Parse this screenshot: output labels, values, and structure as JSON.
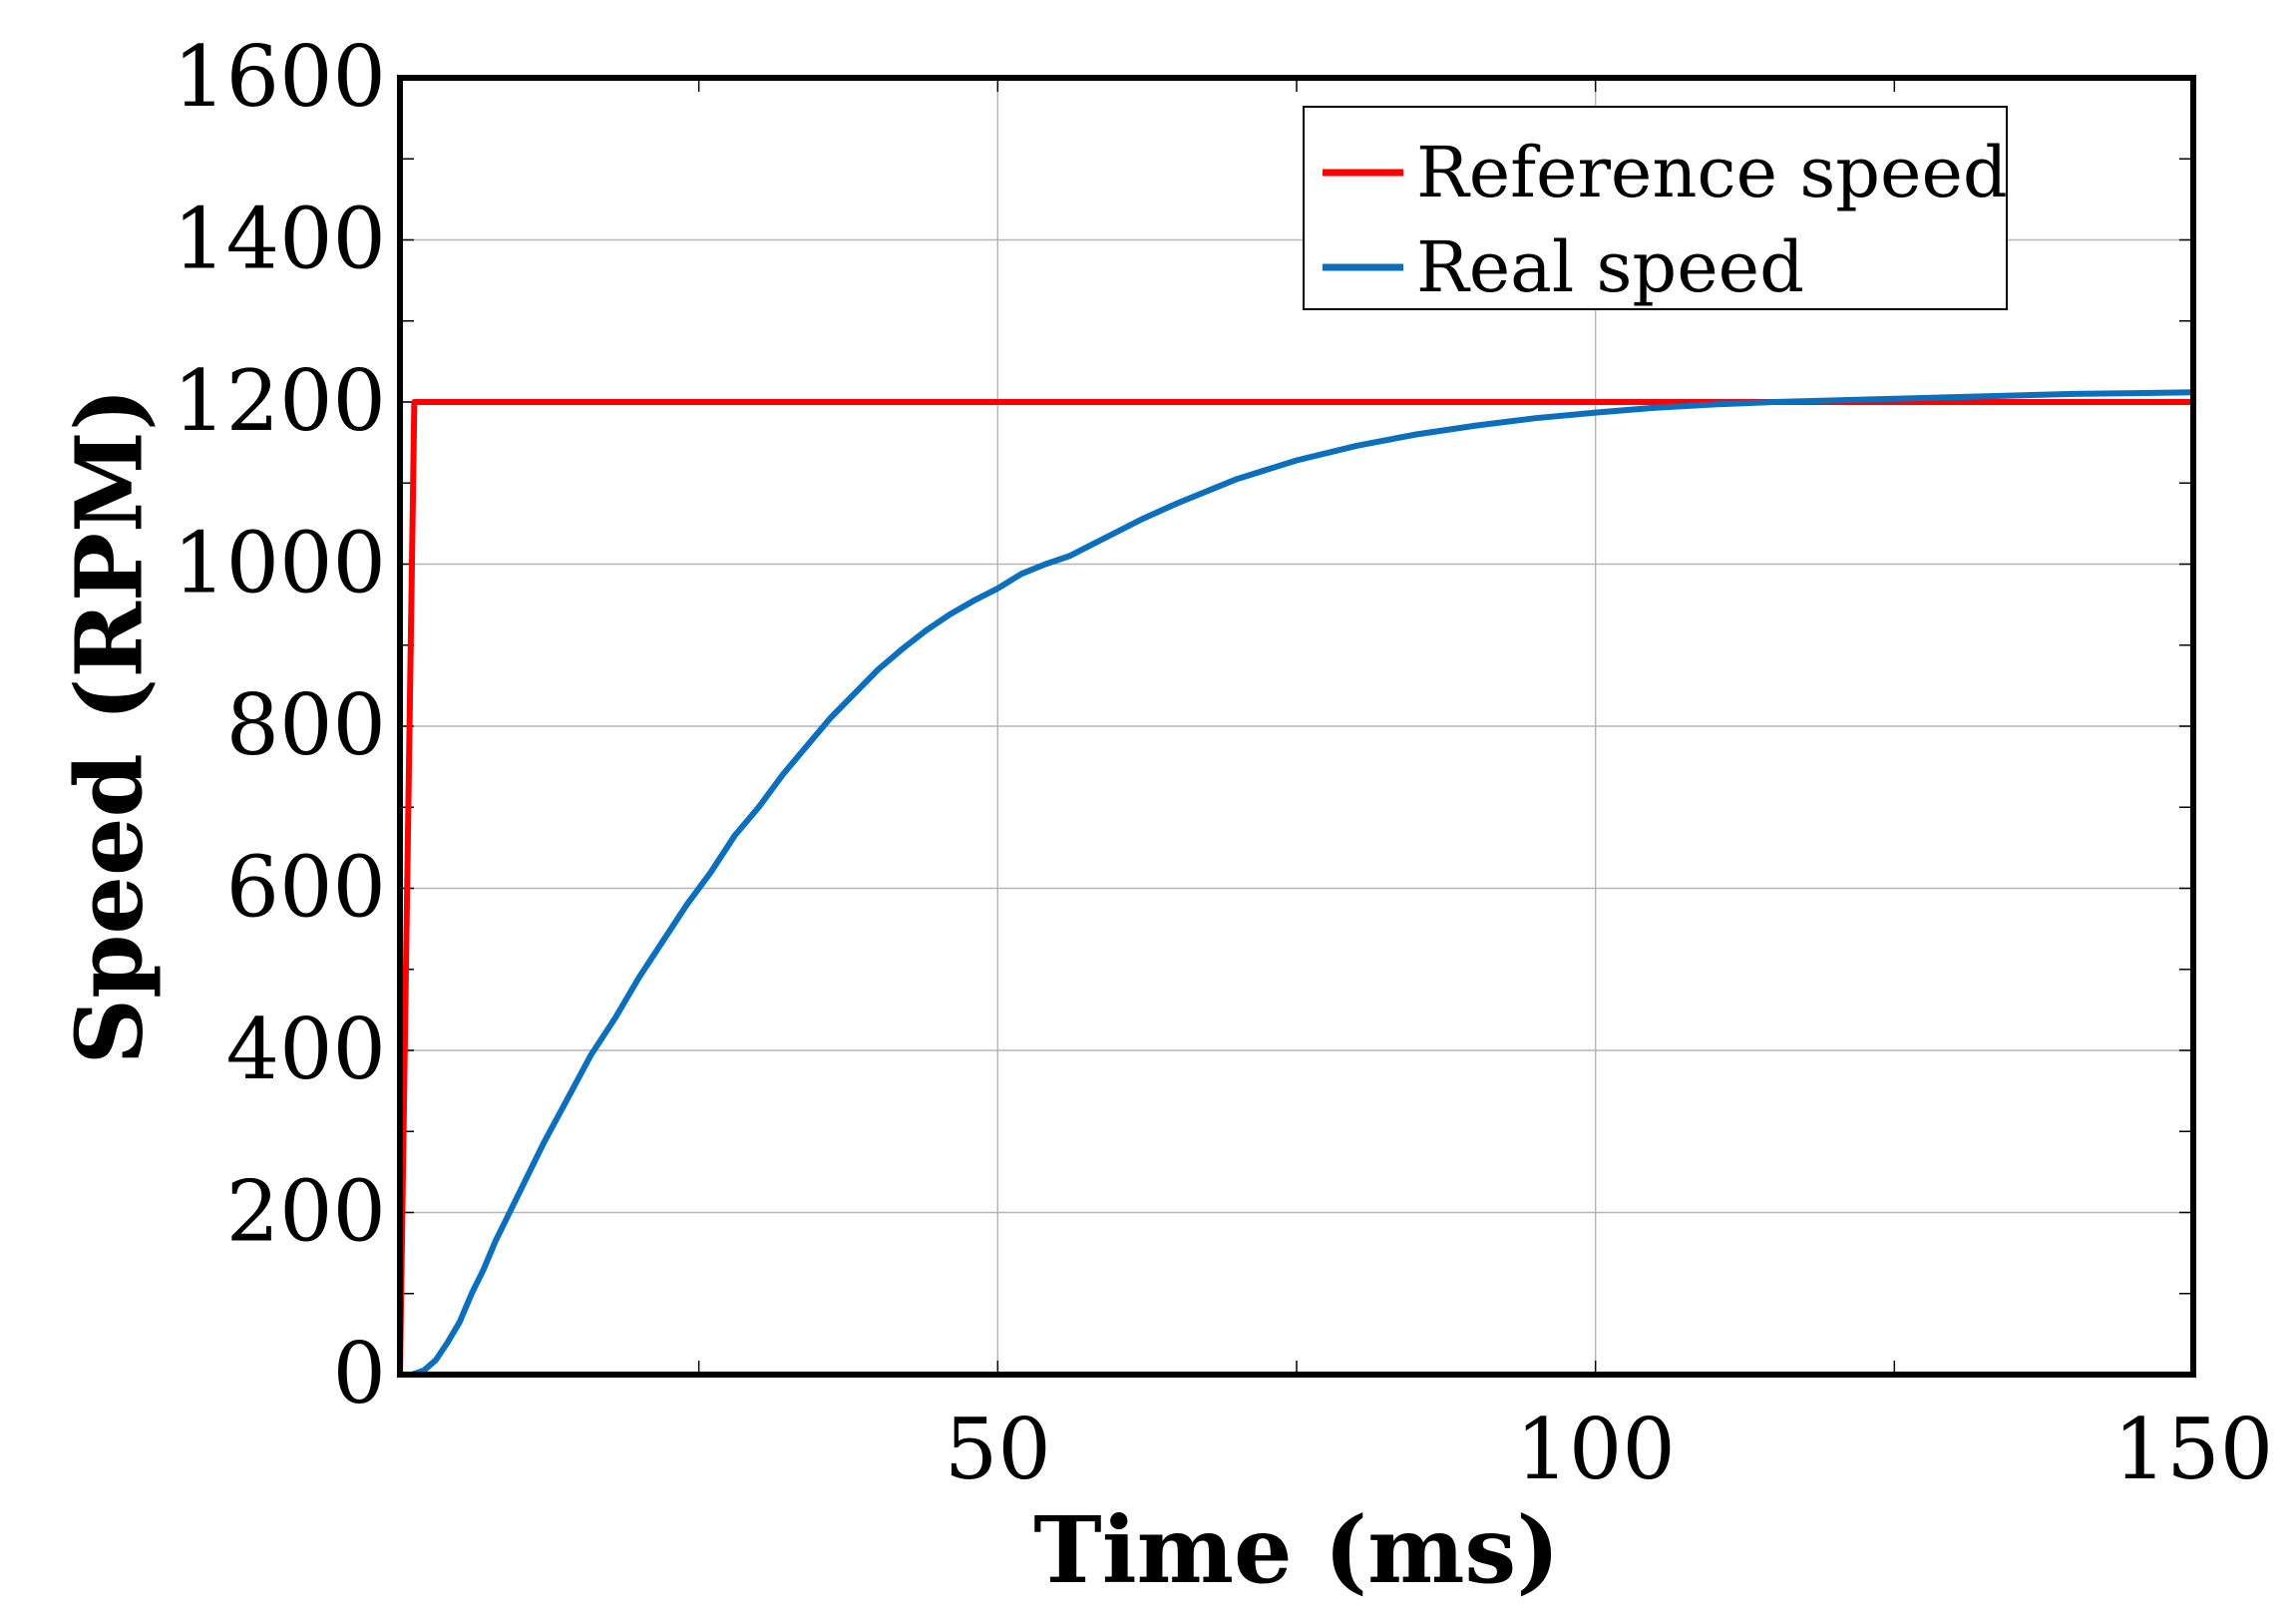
{
  "chart_data": {
    "type": "line",
    "title": "",
    "xlabel": "Time (ms)",
    "ylabel": "Speed (RPM)",
    "xlim": [
      0,
      150
    ],
    "ylim": [
      0,
      1600
    ],
    "xticks": [
      50,
      100,
      150
    ],
    "xtick_labels": [
      "50",
      "100",
      "150"
    ],
    "yticks": [
      0,
      200,
      400,
      600,
      800,
      1000,
      1200,
      1400,
      1600
    ],
    "ytick_labels": [
      "0",
      "200",
      "400",
      "600",
      "800",
      "1000",
      "1200",
      "1400",
      "1600"
    ],
    "grid": true,
    "legend_position": "top-right",
    "series": [
      {
        "name": "Reference speed",
        "color": "#ff0000",
        "x": [
          0,
          1.2,
          1.4,
          150
        ],
        "y": [
          0,
          1200,
          1200,
          1200
        ]
      },
      {
        "name": "Real speed",
        "color": "#0c6fbd",
        "x": [
          0,
          1,
          2,
          3,
          4,
          5,
          6,
          7,
          8,
          9,
          10,
          12,
          14,
          16,
          18,
          20,
          22,
          24,
          26,
          28,
          30,
          32,
          34,
          36,
          38,
          40,
          42,
          44,
          46,
          48,
          50,
          52,
          54,
          56,
          58,
          60,
          62,
          65,
          70,
          75,
          80,
          85,
          90,
          95,
          100,
          105,
          110,
          115,
          120,
          125,
          130,
          135,
          140,
          145,
          150
        ],
        "y": [
          0,
          0,
          5,
          18,
          40,
          65,
          100,
          130,
          165,
          195,
          225,
          285,
          340,
          395,
          440,
          490,
          535,
          580,
          620,
          665,
          700,
          740,
          775,
          810,
          840,
          870,
          895,
          918,
          938,
          955,
          970,
          988,
          1000,
          1010,
          1025,
          1040,
          1055,
          1075,
          1105,
          1128,
          1146,
          1160,
          1171,
          1180,
          1187,
          1193,
          1197,
          1200,
          1202,
          1204,
          1206,
          1208,
          1210,
          1211,
          1212
        ]
      }
    ]
  }
}
